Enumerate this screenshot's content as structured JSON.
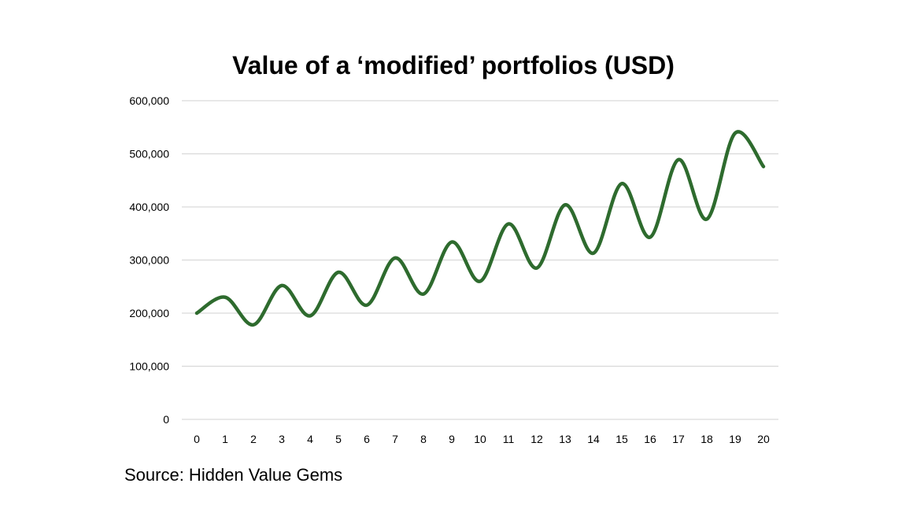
{
  "chart_data": {
    "type": "line",
    "title": "Value of a ‘modified’ portfolios (USD)",
    "xlabel": "",
    "ylabel": "",
    "ylim": [
      0,
      600000
    ],
    "y_ticks": [
      "0",
      "100,000",
      "200,000",
      "300,000",
      "400,000",
      "500,000",
      "600,000"
    ],
    "categories": [
      "0",
      "1",
      "2",
      "3",
      "4",
      "5",
      "6",
      "7",
      "8",
      "9",
      "10",
      "11",
      "12",
      "13",
      "14",
      "15",
      "16",
      "17",
      "18",
      "19",
      "20"
    ],
    "series": [
      {
        "color": "#2e6b2e",
        "smooth": true,
        "values": [
          200000,
          230000,
          178000,
          252000,
          195000,
          277000,
          215000,
          304000,
          236000,
          334000,
          260000,
          368000,
          285000,
          404000,
          313000,
          444000,
          343000,
          489000,
          377000,
          539000,
          476000
        ]
      }
    ],
    "grid": true,
    "legend": "none",
    "source": "Source: Hidden Value Gems"
  }
}
